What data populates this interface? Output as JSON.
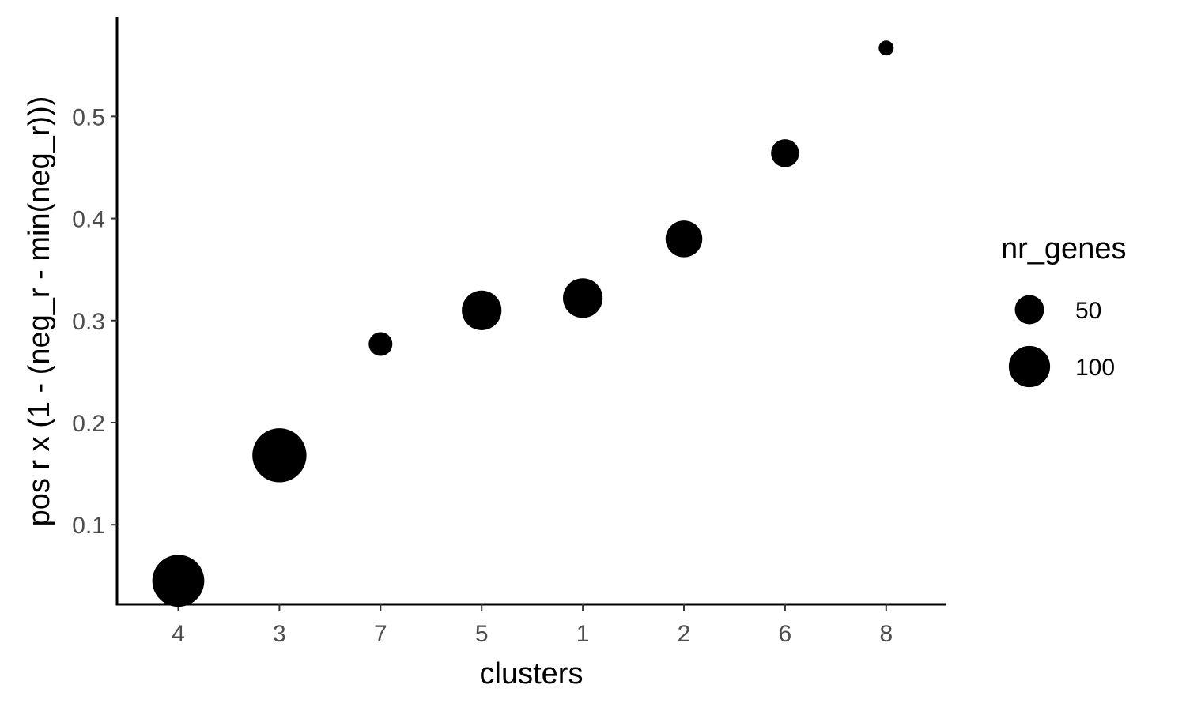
{
  "chart_data": {
    "type": "scatter",
    "title": "",
    "xlabel": "clusters",
    "ylabel": "pos r x (1 - (neg_r - min(neg_r)))",
    "categories": [
      "4",
      "3",
      "7",
      "5",
      "1",
      "2",
      "6",
      "8"
    ],
    "y_ticks": [
      "0.1",
      "0.2",
      "0.3",
      "0.4",
      "0.5"
    ],
    "ylim": [
      0.022,
      0.597
    ],
    "grid": false,
    "legend_position": "right",
    "point_color": "#000000",
    "series": [
      {
        "values": [
          0.045,
          0.168,
          0.277,
          0.31,
          0.322,
          0.38,
          0.464,
          0.567
        ],
        "size": [
          120,
          130,
          25,
          70,
          70,
          60,
          35,
          10
        ]
      }
    ],
    "legend": {
      "title": "nr_genes",
      "entries": [
        {
          "label": "50",
          "size": 50
        },
        {
          "label": "100",
          "size": 100
        }
      ]
    }
  }
}
